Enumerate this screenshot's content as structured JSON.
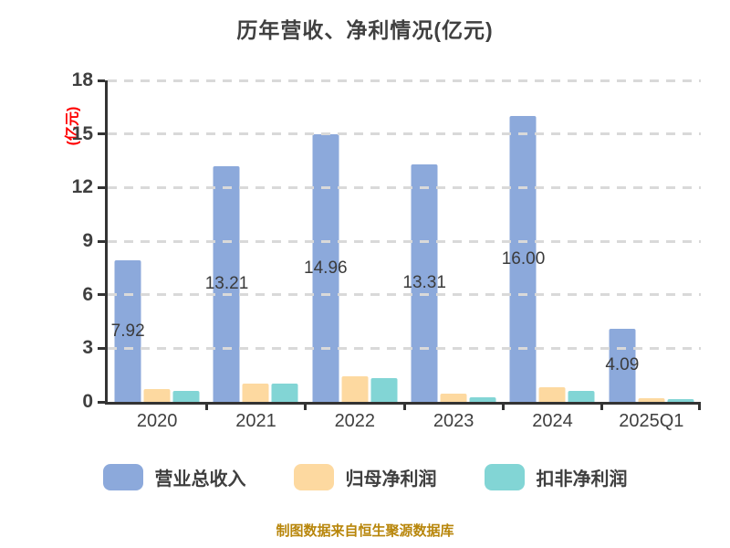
{
  "title": "历年营收、净利情况(亿元)",
  "y_unit_label": "(亿元)",
  "footer_note": "制图数据来自恒生聚源数据库",
  "colors": {
    "revenue_bar": "#8CA9DB",
    "net_profit_bar": "#FDD9A0",
    "deducted_net_profit_bar": "#82D5D5",
    "gridline": "#D9D9D9",
    "axis": "#333333",
    "text": "#404040",
    "unit_label": "#FF0000",
    "footer": "#B8860B"
  },
  "chart_data": {
    "type": "bar",
    "title": "历年营收、净利情况(亿元)",
    "ylabel": "(亿元)",
    "xlabel": "",
    "categories": [
      "2020",
      "2021",
      "2022",
      "2023",
      "2024",
      "2025Q1"
    ],
    "series": [
      {
        "name": "营业总收入",
        "color": "#8CA9DB",
        "values": [
          7.92,
          13.21,
          14.96,
          13.31,
          16.0,
          4.09
        ],
        "labels": [
          "7.92",
          "13.21",
          "14.96",
          "13.31",
          "16.00",
          "4.09"
        ]
      },
      {
        "name": "归母净利润",
        "color": "#FDD9A0",
        "values": [
          0.72,
          1.04,
          1.45,
          0.46,
          0.82,
          0.2
        ],
        "labels": [
          "",
          "",
          "",
          "",
          "",
          ""
        ]
      },
      {
        "name": "扣非净利润",
        "color": "#82D5D5",
        "values": [
          0.6,
          1.0,
          1.31,
          0.27,
          0.6,
          0.13
        ],
        "labels": [
          "",
          "",
          "",
          "",
          "",
          ""
        ]
      }
    ],
    "ylim": [
      0,
      18
    ],
    "yticks": [
      0,
      3,
      6,
      9,
      12,
      15,
      18
    ],
    "grid": "dashed-horizontal",
    "legend_position": "bottom"
  },
  "legend": {
    "items": [
      {
        "label": "营业总收入",
        "color": "#8CA9DB"
      },
      {
        "label": "归母净利润",
        "color": "#FDD9A0"
      },
      {
        "label": "扣非净利润",
        "color": "#82D5D5"
      }
    ]
  }
}
